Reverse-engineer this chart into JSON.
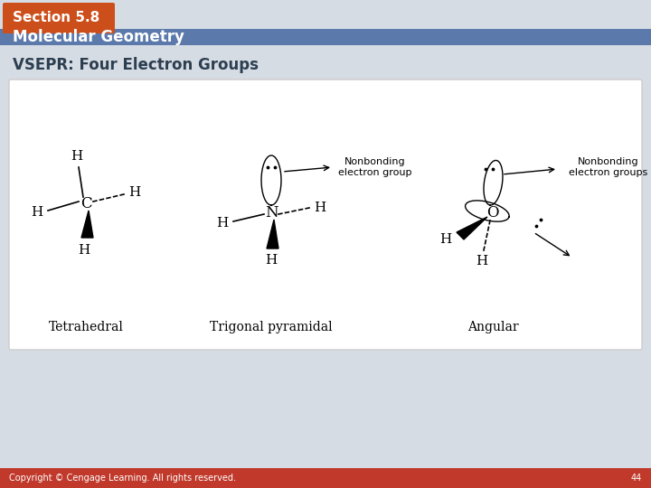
{
  "bg_color": "#d6dce4",
  "header_tab_color": "#cc4e1a",
  "header_bar_color": "#5b7aab",
  "footer_bar_color": "#c0392b",
  "section_text": "Section 5.8",
  "title_text": "Molecular Geometry",
  "subtitle_text": "VSEPR: Four Electron Groups",
  "footer_text": "Copyright © Cengage Learning. All rights reserved.",
  "page_number": "44",
  "diagram_bg": "#ffffff",
  "diagram_border": "#cccccc",
  "label_tetrahedral": "Tetrahedral",
  "label_trigonal": "Trigonal pyramidal",
  "label_angular": "Angular",
  "nonbonding_label1": "Nonbonding\nelectron group",
  "nonbonding_label2": "Nonbonding\nelectron groups"
}
